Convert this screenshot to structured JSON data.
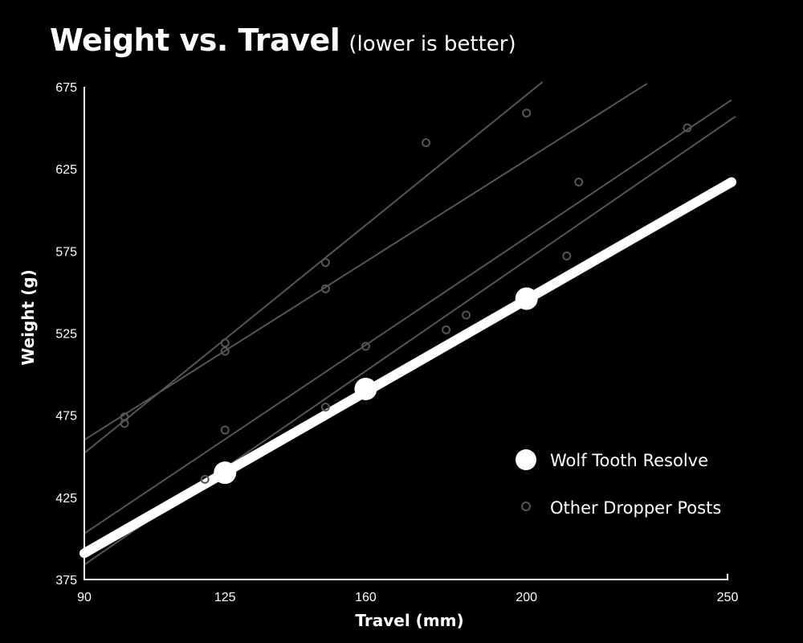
{
  "chart_data": {
    "type": "scatter",
    "title": "Weight vs. Travel",
    "subtitle": "(lower is better)",
    "xlabel": "Travel (mm)",
    "ylabel": "Weight (g)",
    "xlim": [
      90,
      250
    ],
    "ylim": [
      375,
      675
    ],
    "xticks": [
      90,
      125,
      160,
      200,
      250
    ],
    "yticks": [
      375,
      425,
      475,
      525,
      575,
      625,
      675
    ],
    "grid": false,
    "legend_position": "bottom-right",
    "series": [
      {
        "name": "Other Dropper Posts",
        "color": "#555555",
        "marker": "hollow-circle",
        "points": [
          {
            "x": 100,
            "y": 474
          },
          {
            "x": 100,
            "y": 470
          },
          {
            "x": 125,
            "y": 519
          },
          {
            "x": 125,
            "y": 514
          },
          {
            "x": 125,
            "y": 466
          },
          {
            "x": 120,
            "y": 436
          },
          {
            "x": 150,
            "y": 568
          },
          {
            "x": 150,
            "y": 552
          },
          {
            "x": 150,
            "y": 480
          },
          {
            "x": 160,
            "y": 517
          },
          {
            "x": 175,
            "y": 641
          },
          {
            "x": 180,
            "y": 527
          },
          {
            "x": 185,
            "y": 536
          },
          {
            "x": 200,
            "y": 659
          },
          {
            "x": 210,
            "y": 572
          },
          {
            "x": 213,
            "y": 617
          },
          {
            "x": 240,
            "y": 650
          }
        ],
        "trendlines": [
          {
            "x": [
              90,
              204
            ],
            "y": [
              452,
              678
            ]
          },
          {
            "x": [
              90,
              230
            ],
            "y": [
              460,
              677
            ]
          },
          {
            "x": [
              90,
              251
            ],
            "y": [
              403,
              667
            ]
          },
          {
            "x": [
              90,
              252
            ],
            "y": [
              384,
              657
            ]
          }
        ]
      },
      {
        "name": "Wolf Tooth Resolve",
        "color": "#ffffff",
        "marker": "filled-circle",
        "points": [
          {
            "x": 125,
            "y": 440
          },
          {
            "x": 160,
            "y": 491
          },
          {
            "x": 200,
            "y": 546
          }
        ],
        "trendline": {
          "x": [
            90,
            251
          ],
          "y": [
            391,
            617
          ]
        }
      }
    ]
  }
}
